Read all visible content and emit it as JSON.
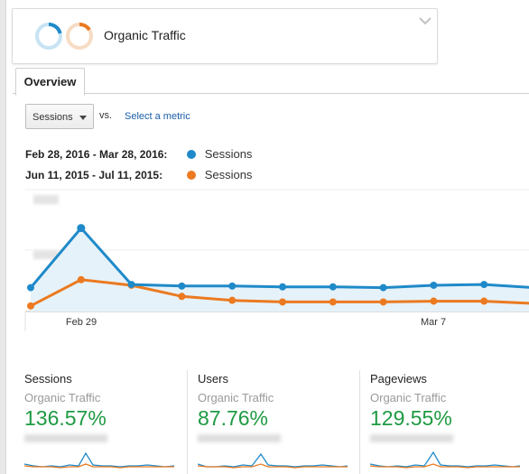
{
  "segment": {
    "title": "Organic Traffic"
  },
  "tabs": [
    {
      "label": "Overview"
    }
  ],
  "toolbar": {
    "metric_label": "Sessions",
    "vs_label": "vs.",
    "select_metric_label": "Select a metric"
  },
  "legend": [
    {
      "range": "Feb 28, 2016 - Mar 28, 2016:",
      "series": "Sessions",
      "color": "#1f8ac9"
    },
    {
      "range": "Jun 11, 2015 - Jul 11, 2015:",
      "series": "Sessions",
      "color": "#eb7a21"
    }
  ],
  "chart_data": {
    "type": "line",
    "x_tick_labels": [
      "Feb 29",
      "Mar 7"
    ],
    "series": [
      {
        "name": "Sessions",
        "color": "#1f8ac9",
        "values": [
          0.3,
          1.05,
          0.34,
          0.32,
          0.32,
          0.31,
          0.31,
          0.3,
          0.33,
          0.34,
          0.3
        ]
      },
      {
        "name": "Sessions",
        "color": "#eb7a21",
        "values": [
          0.07,
          0.4,
          0.33,
          0.19,
          0.14,
          0.12,
          0.12,
          0.12,
          0.13,
          0.13,
          0.1
        ]
      }
    ],
    "grid": true
  },
  "scorecards": [
    {
      "metric": "Sessions",
      "segment": "Organic Traffic",
      "change": "136.57%"
    },
    {
      "metric": "Users",
      "segment": "Organic Traffic",
      "change": "87.76%"
    },
    {
      "metric": "Pageviews",
      "segment": "Organic Traffic",
      "change": "129.55%"
    }
  ],
  "colors": {
    "current": "#1f8ac9",
    "previous": "#eb7a21",
    "positive": "#1e9a43",
    "link": "#1a5ea8"
  }
}
